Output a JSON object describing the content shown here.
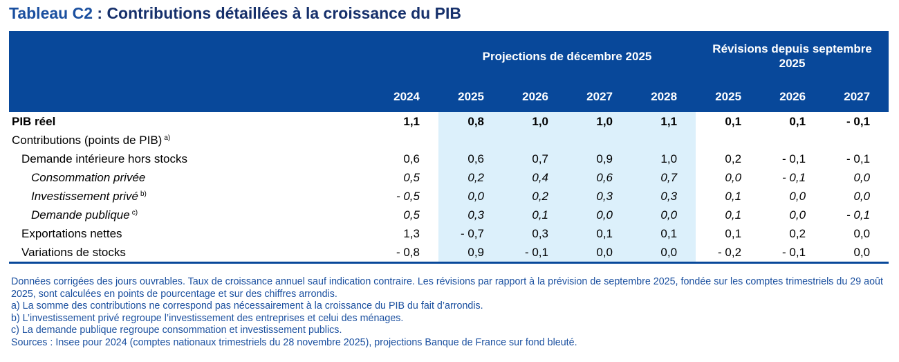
{
  "title": {
    "code": "Tableau C2",
    "text": " : Contributions détaillées à la croissance du PIB"
  },
  "header": {
    "group_projections": "Projections de décembre 2025",
    "group_revisions": "Révisions depuis septembre 2025",
    "years": [
      "2024",
      "2025",
      "2026",
      "2027",
      "2028",
      "2025",
      "2026",
      "2027"
    ]
  },
  "rows": [
    {
      "label": "PIB réel",
      "note": "",
      "values": [
        "1,1",
        "0,8",
        "1,0",
        "1,0",
        "1,1",
        "0,1",
        "0,1",
        "- 0,1"
      ]
    },
    {
      "label": "Contributions (points de PIB)",
      "note": "a)",
      "values": [
        "",
        "",
        "",
        "",
        "",
        "",
        "",
        ""
      ]
    },
    {
      "label": "Demande intérieure hors stocks",
      "note": "",
      "values": [
        "0,6",
        "0,6",
        "0,7",
        "0,9",
        "1,0",
        "0,2",
        "- 0,1",
        "- 0,1"
      ]
    },
    {
      "label": "Consommation privée",
      "note": "",
      "values": [
        "0,5",
        "0,2",
        "0,4",
        "0,6",
        "0,7",
        "0,0",
        "- 0,1",
        "0,0"
      ]
    },
    {
      "label": "Investissement privé",
      "note": "b)",
      "values": [
        "- 0,5",
        "0,0",
        "0,2",
        "0,3",
        "0,3",
        "0,1",
        "0,0",
        "0,0"
      ]
    },
    {
      "label": "Demande publique",
      "note": "c)",
      "values": [
        "0,5",
        "0,3",
        "0,1",
        "0,0",
        "0,0",
        "0,1",
        "0,0",
        "- 0,1"
      ]
    },
    {
      "label": "Exportations nettes",
      "note": "",
      "values": [
        "1,3",
        "- 0,7",
        "0,3",
        "0,1",
        "0,1",
        "0,1",
        "0,2",
        "0,0"
      ]
    },
    {
      "label": "Variations de stocks",
      "note": "",
      "values": [
        "- 0,8",
        "0,9",
        "- 0,1",
        "0,0",
        "0,0",
        "- 0,2",
        "- 0,1",
        "0,0"
      ]
    }
  ],
  "notes": [
    "Données corrigées des jours ouvrables. Taux de croissance annuel sauf indication contraire. Les révisions par rapport à la prévision de septembre 2025, fondée sur les comptes trimestriels du 29 août 2025, sont calculées en points de pourcentage et sur des chiffres arrondis.",
    "a)  La somme des contributions ne correspond pas nécessairement à la croissance du PIB du fait d’arrondis.",
    "b)  L’investissement privé regroupe l’investissement des entreprises et celui des ménages.",
    "c)  La demande publique regroupe consommation et investissement publics.",
    "Sources : Insee pour 2024 (comptes nationaux trimestriels du 28 novembre 2025), projections Banque de France sur fond bleuté."
  ],
  "colors": {
    "header": "#08489a",
    "shade": "#dcf0fb",
    "title": "#16306b",
    "notes": "#1a4f9f"
  }
}
